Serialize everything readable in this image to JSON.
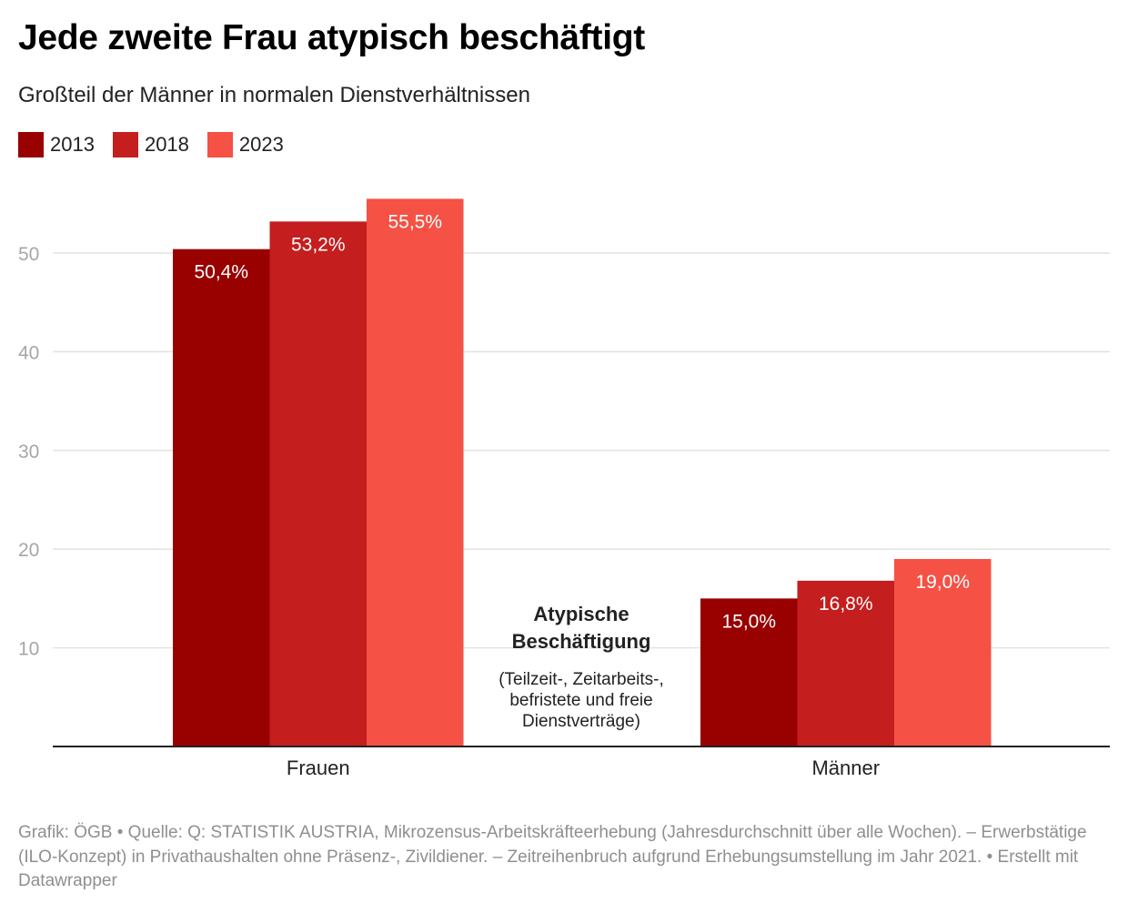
{
  "title": "Jede zweite Frau atypisch beschäftigt",
  "subtitle": "Großteil der Männer in normalen Dienstverhältnissen",
  "footer": "Grafik: ÖGB • Quelle: Q: STATISTIK AUSTRIA, Mikrozensus-Arbeitskräfteerhebung (Jahresdurchschnitt über alle Wochen). – Erwerbstätige (ILO-Konzept) in Privathaushalten ohne Präsenz-, Zivildiener. – Zeitreihenbruch aufgrund Erhebungsumstellung im Jahr 2021. • Erstellt mit Datawrapper",
  "annotation": {
    "heading_line1": "Atypische",
    "heading_line2": "Beschäftigung",
    "note_line1": "(Teilzeit-, Zeitarbeits-,",
    "note_line2": "befristete und freie",
    "note_line3": "Dienstverträge)"
  },
  "chart_data": {
    "type": "bar",
    "categories": [
      "Frauen",
      "Männer"
    ],
    "series": [
      {
        "name": "2013",
        "color": "#990000",
        "values": [
          50.4,
          15.0
        ],
        "labels": [
          "50,4%",
          "15,0%"
        ]
      },
      {
        "name": "2018",
        "color": "#c41e1e",
        "values": [
          53.2,
          16.8
        ],
        "labels": [
          "53,2%",
          "16,8%"
        ]
      },
      {
        "name": "2023",
        "color": "#f55144",
        "values": [
          55.5,
          19.0
        ],
        "labels": [
          "55,5%",
          "19,0%"
        ]
      }
    ],
    "yticks": [
      10,
      20,
      30,
      40,
      50
    ],
    "ylim": [
      0,
      58
    ],
    "grid": true,
    "legend_position": "top-left",
    "xlabel": "",
    "ylabel": ""
  }
}
